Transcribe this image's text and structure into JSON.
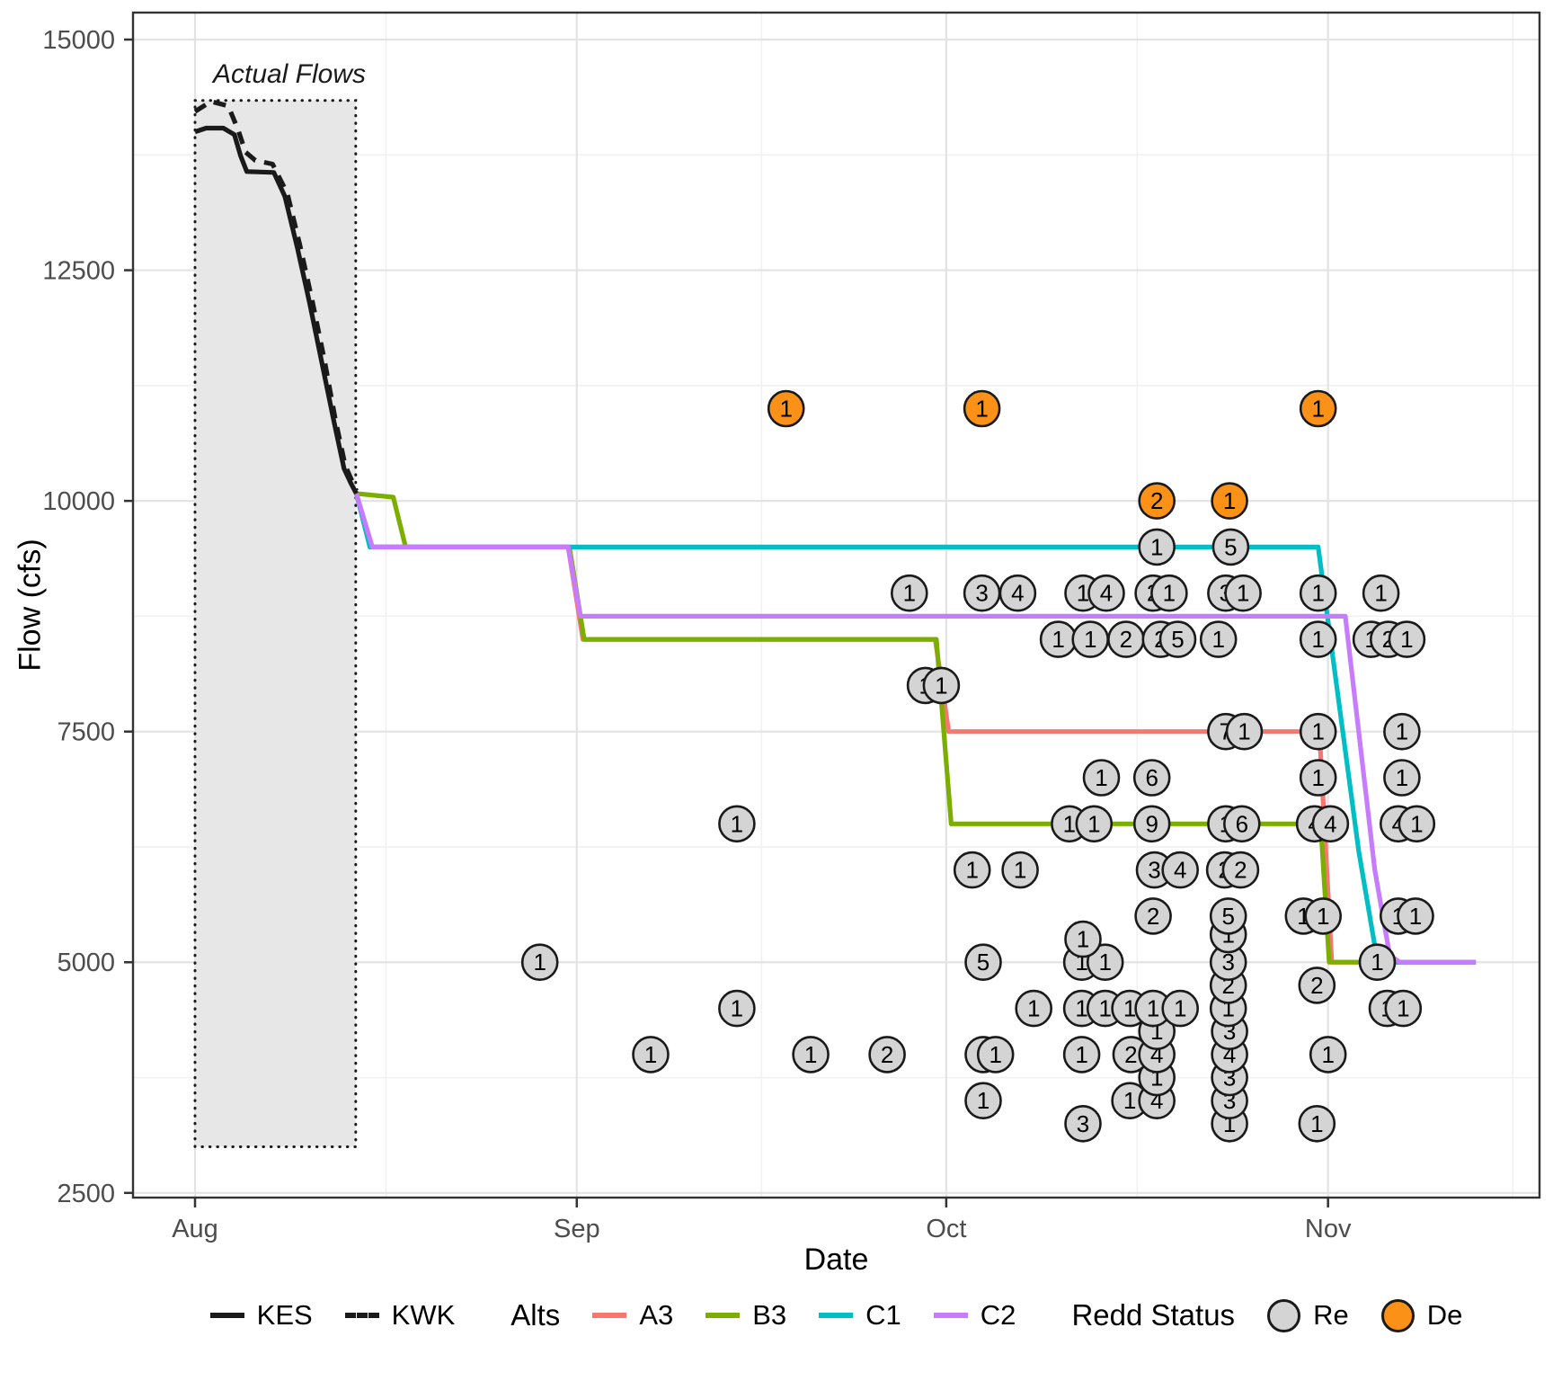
{
  "annotation_note": "all content below is read from the screenshot pixels",
  "axes_titles": {
    "x": "Date",
    "y": "Flow (cfs)"
  },
  "legend": {
    "kes_label": "KES",
    "kwk_label": "KWK",
    "alts_title": "Alts",
    "alt_labels": [
      "A3",
      "B3",
      "C1",
      "C2"
    ],
    "redd_title": "Redd Status",
    "re_label": "Re",
    "de_label": "De"
  },
  "colors": {
    "A3": "#F8766D",
    "B3": "#7CAE00",
    "C1": "#00BFC4",
    "C2": "#C77CFF",
    "KES": "#1A1A1A",
    "KWK": "#1A1A1A",
    "re_fill": "#D4D4D4",
    "de_fill": "#FB9116",
    "point_stroke": "#1A1A1A",
    "grid_major": "#E3E3E3",
    "grid_minor": "#F1F1F1",
    "panel_border": "#333333",
    "tick_mark": "#333333",
    "tick_label": "#4D4D4D",
    "actual_rect_fill": "#E7E7E7",
    "actual_rect_border": "#1A1A1A"
  },
  "chart_data": {
    "type": "line+scatter",
    "title": "",
    "x_axis": {
      "label": "Date",
      "ticks": [
        {
          "label": "Aug",
          "day": 0
        },
        {
          "label": "Sep",
          "day": 31
        },
        {
          "label": "Oct",
          "day": 61
        },
        {
          "label": "Nov",
          "day": 92
        }
      ],
      "minor_days": [
        15.5,
        46,
        76.5,
        107
      ],
      "range_days": [
        -5,
        109.3
      ]
    },
    "y_axis": {
      "label": "Flow (cfs)",
      "ticks": [
        2500,
        5000,
        7500,
        10000,
        12500,
        15000
      ],
      "minor": [
        3750,
        6250,
        8750,
        11250,
        13750
      ],
      "range": [
        2446,
        15292
      ]
    },
    "actual_flows_box": {
      "label": "Actual Flows",
      "day_start": 0,
      "day_end": 13.05,
      "flow_min": 3000,
      "flow_max": 14340
    },
    "series": [
      {
        "name": "KES",
        "style": "solid",
        "color_key": "KES",
        "points": [
          [
            0,
            14000
          ],
          [
            0.9,
            14040
          ],
          [
            2.3,
            14040
          ],
          [
            3.2,
            13970
          ],
          [
            3.7,
            13740
          ],
          [
            4.2,
            13570
          ],
          [
            6.4,
            13560
          ],
          [
            7.3,
            13300
          ],
          [
            8.3,
            12750
          ],
          [
            9.3,
            12150
          ],
          [
            10.3,
            11500
          ],
          [
            11.3,
            10850
          ],
          [
            12.1,
            10350
          ],
          [
            12.7,
            10180
          ],
          [
            13.1,
            10080
          ]
        ]
      },
      {
        "name": "KWK",
        "style": "dashed",
        "color_key": "KWK",
        "points": [
          [
            0,
            14220
          ],
          [
            1.3,
            14330
          ],
          [
            2.7,
            14280
          ],
          [
            3.5,
            14020
          ],
          [
            4.1,
            13780
          ],
          [
            4.9,
            13690
          ],
          [
            6.3,
            13650
          ],
          [
            7.5,
            13330
          ],
          [
            8.5,
            12780
          ],
          [
            9.5,
            12180
          ],
          [
            10.5,
            11530
          ],
          [
            11.4,
            10880
          ],
          [
            12.2,
            10380
          ],
          [
            13.1,
            10110
          ]
        ]
      },
      {
        "name": "A3",
        "style": "solid",
        "color_key": "A3",
        "points": [
          [
            13.1,
            10080
          ],
          [
            14.2,
            9500
          ],
          [
            30.3,
            9500
          ],
          [
            31.5,
            8500
          ],
          [
            60.1,
            8500
          ],
          [
            61.2,
            7500
          ],
          [
            91.3,
            7500
          ],
          [
            92.3,
            5000
          ],
          [
            104,
            5000
          ]
        ]
      },
      {
        "name": "B3",
        "style": "solid",
        "color_key": "B3",
        "points": [
          [
            13.1,
            10080
          ],
          [
            16.1,
            10040
          ],
          [
            17.1,
            9500
          ],
          [
            30.4,
            9500
          ],
          [
            31.6,
            8500
          ],
          [
            60.2,
            8500
          ],
          [
            61.4,
            6500
          ],
          [
            91.4,
            6500
          ],
          [
            92.1,
            5000
          ],
          [
            104,
            5000
          ]
        ]
      },
      {
        "name": "C1",
        "style": "solid",
        "color_key": "C1",
        "points": [
          [
            13.1,
            10080
          ],
          [
            14.2,
            9500
          ],
          [
            91.2,
            9500
          ],
          [
            94.5,
            6200
          ],
          [
            95.9,
            5100
          ],
          [
            96.6,
            5000
          ],
          [
            104,
            5000
          ]
        ]
      },
      {
        "name": "C2",
        "style": "solid",
        "color_key": "C2",
        "points": [
          [
            13.1,
            10080
          ],
          [
            14.4,
            9500
          ],
          [
            30.3,
            9500
          ],
          [
            31.3,
            8750
          ],
          [
            93.4,
            8750
          ],
          [
            95.8,
            6000
          ],
          [
            97.0,
            5080
          ],
          [
            97.8,
            5000
          ],
          [
            104,
            5000
          ]
        ]
      }
    ],
    "redd_points_format": [
      "day_after_aug1",
      "flow_cfs",
      "count_label",
      "status"
    ],
    "redd_points": [
      [
        28.0,
        5000,
        "1",
        "Re"
      ],
      [
        44.0,
        6500,
        "1",
        "Re"
      ],
      [
        44.0,
        4500,
        "1",
        "Re"
      ],
      [
        37.0,
        4000,
        "1",
        "Re"
      ],
      [
        50.0,
        4000,
        "1",
        "Re"
      ],
      [
        56.2,
        4000,
        "2",
        "Re"
      ],
      [
        78.1,
        9500,
        "1",
        "Re"
      ],
      [
        84.1,
        9500,
        "5",
        "Re"
      ],
      [
        58.0,
        9000,
        "1",
        "Re"
      ],
      [
        63.9,
        9000,
        "3",
        "Re"
      ],
      [
        66.8,
        9000,
        "4",
        "Re"
      ],
      [
        72.1,
        9000,
        "1",
        "Re"
      ],
      [
        74.0,
        9000,
        "4",
        "Re"
      ],
      [
        77.8,
        9000,
        "2",
        "Re"
      ],
      [
        79.1,
        9000,
        "1",
        "Re"
      ],
      [
        83.7,
        9000,
        "3",
        "Re"
      ],
      [
        85.1,
        9000,
        "1",
        "Re"
      ],
      [
        91.2,
        9000,
        "1",
        "Re"
      ],
      [
        96.3,
        9000,
        "1",
        "Re"
      ],
      [
        70.1,
        8500,
        "1",
        "Re"
      ],
      [
        72.7,
        8500,
        "1",
        "Re"
      ],
      [
        75.6,
        8500,
        "2",
        "Re"
      ],
      [
        78.4,
        8500,
        "2",
        "Re"
      ],
      [
        79.8,
        8500,
        "5",
        "Re"
      ],
      [
        83.1,
        8500,
        "1",
        "Re"
      ],
      [
        91.2,
        8500,
        "1",
        "Re"
      ],
      [
        95.5,
        8500,
        "1",
        "Re"
      ],
      [
        96.9,
        8500,
        "2",
        "Re"
      ],
      [
        98.4,
        8500,
        "1",
        "Re"
      ],
      [
        59.3,
        8000,
        "1",
        "Re"
      ],
      [
        60.6,
        8000,
        "1",
        "Re"
      ],
      [
        83.7,
        7500,
        "7",
        "Re"
      ],
      [
        85.2,
        7500,
        "1",
        "Re"
      ],
      [
        91.2,
        7500,
        "1",
        "Re"
      ],
      [
        98.0,
        7500,
        "1",
        "Re"
      ],
      [
        73.6,
        7000,
        "1",
        "Re"
      ],
      [
        77.7,
        7000,
        "6",
        "Re"
      ],
      [
        91.2,
        7000,
        "1",
        "Re"
      ],
      [
        98.0,
        7000,
        "1",
        "Re"
      ],
      [
        71.0,
        6500,
        "1",
        "Re"
      ],
      [
        73.0,
        6500,
        "1",
        "Re"
      ],
      [
        77.7,
        6500,
        "9",
        "Re"
      ],
      [
        83.7,
        6500,
        "1",
        "Re"
      ],
      [
        85.0,
        6500,
        "6",
        "Re"
      ],
      [
        90.9,
        6500,
        "4",
        "Re"
      ],
      [
        92.2,
        6500,
        "4",
        "Re"
      ],
      [
        97.7,
        6500,
        "4",
        "Re"
      ],
      [
        99.2,
        6500,
        "1",
        "Re"
      ],
      [
        63.1,
        6000,
        "1",
        "Re"
      ],
      [
        67.0,
        6000,
        "1",
        "Re"
      ],
      [
        77.9,
        6000,
        "3",
        "Re"
      ],
      [
        80.0,
        6000,
        "4",
        "Re"
      ],
      [
        83.6,
        6000,
        "2",
        "Re"
      ],
      [
        84.9,
        6000,
        "2",
        "Re"
      ],
      [
        77.8,
        5500,
        "2",
        "Re"
      ],
      [
        83.9,
        5500,
        "5",
        "Re"
      ],
      [
        90.0,
        5500,
        "1",
        "Re"
      ],
      [
        91.6,
        5500,
        "1",
        "Re"
      ],
      [
        97.7,
        5500,
        "1",
        "Re"
      ],
      [
        99.1,
        5500,
        "1",
        "Re"
      ],
      [
        72.1,
        5250,
        "1",
        "Re"
      ],
      [
        83.9,
        5300,
        "1",
        "Re"
      ],
      [
        64.0,
        5000,
        "5",
        "Re"
      ],
      [
        72.0,
        5000,
        "1",
        "Re"
      ],
      [
        73.9,
        5000,
        "1",
        "Re"
      ],
      [
        83.9,
        5000,
        "3",
        "Re"
      ],
      [
        96.0,
        5000,
        "1",
        "Re"
      ],
      [
        83.9,
        4750,
        "2",
        "Re"
      ],
      [
        91.1,
        4750,
        "2",
        "Re"
      ],
      [
        68.1,
        4500,
        "1",
        "Re"
      ],
      [
        72.0,
        4500,
        "1",
        "Re"
      ],
      [
        73.9,
        4500,
        "1",
        "Re"
      ],
      [
        75.9,
        4500,
        "1",
        "Re"
      ],
      [
        77.8,
        4500,
        "1",
        "Re"
      ],
      [
        80.0,
        4500,
        "1",
        "Re"
      ],
      [
        83.9,
        4500,
        "1",
        "Re"
      ],
      [
        96.8,
        4500,
        "1",
        "Re"
      ],
      [
        98.1,
        4500,
        "1",
        "Re"
      ],
      [
        78.1,
        4250,
        "1",
        "Re"
      ],
      [
        84.0,
        4250,
        "3",
        "Re"
      ],
      [
        64.0,
        4000,
        "1",
        "Re"
      ],
      [
        65.0,
        4000,
        "1",
        "Re"
      ],
      [
        72.0,
        4000,
        "1",
        "Re"
      ],
      [
        76.0,
        4000,
        "2",
        "Re"
      ],
      [
        78.1,
        4000,
        "4",
        "Re"
      ],
      [
        84.0,
        4000,
        "4",
        "Re"
      ],
      [
        92.0,
        4000,
        "1",
        "Re"
      ],
      [
        78.1,
        3750,
        "1",
        "Re"
      ],
      [
        84.0,
        3750,
        "3",
        "Re"
      ],
      [
        64.0,
        3500,
        "1",
        "Re"
      ],
      [
        75.9,
        3500,
        "1",
        "Re"
      ],
      [
        78.1,
        3500,
        "4",
        "Re"
      ],
      [
        84.0,
        3500,
        "3",
        "Re"
      ],
      [
        72.1,
        3250,
        "3",
        "Re"
      ],
      [
        84.0,
        3250,
        "1",
        "Re"
      ],
      [
        91.1,
        3250,
        "1",
        "Re"
      ],
      [
        48.0,
        11000,
        "1",
        "De"
      ],
      [
        63.9,
        11000,
        "1",
        "De"
      ],
      [
        91.2,
        11000,
        "1",
        "De"
      ],
      [
        78.1,
        10000,
        "2",
        "De"
      ],
      [
        84.0,
        10000,
        "1",
        "De"
      ]
    ],
    "legend_position": "bottom",
    "grid": "major+minor"
  }
}
